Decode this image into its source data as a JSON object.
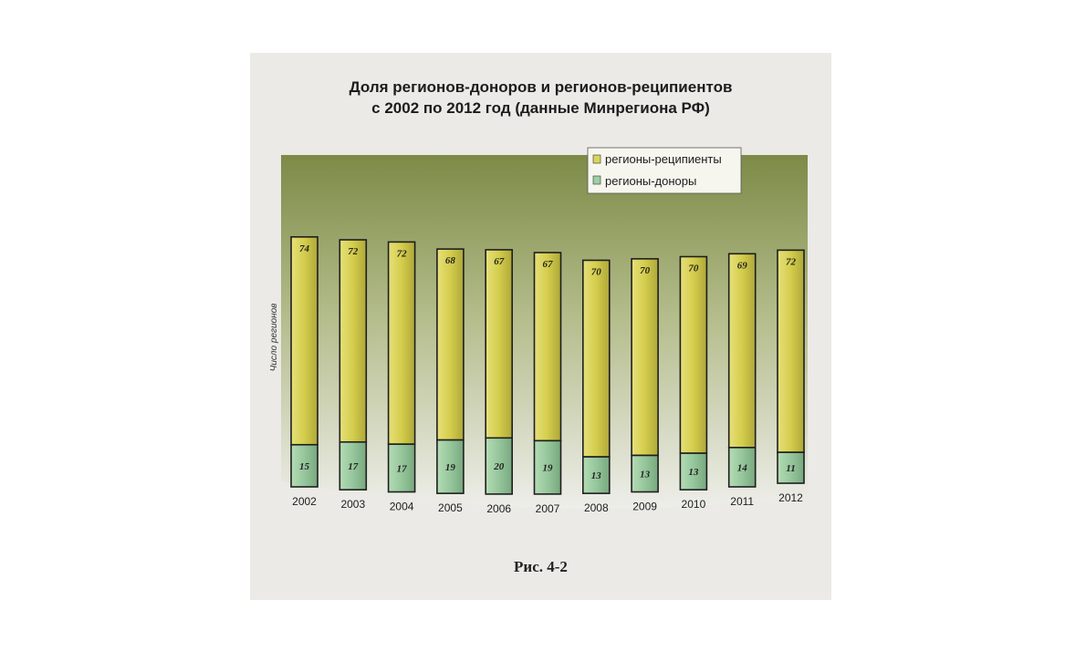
{
  "figure": {
    "title_line1": "Доля регионов-доноров и регионов-реципиентов",
    "title_line2": "с 2002 по 2012 год (данные Минрегиона РФ)",
    "caption": "Рис. 4-2"
  },
  "chart_data": {
    "type": "bar",
    "stacked": true,
    "title": "Доля регионов-доноров и регионов-реципиентов с 2002 по 2012 год (данные Минрегиона РФ)",
    "xlabel": "",
    "ylabel": "Число регионов",
    "categories": [
      "2002",
      "2003",
      "2004",
      "2005",
      "2006",
      "2007",
      "2008",
      "2009",
      "2010",
      "2011",
      "2012"
    ],
    "series": [
      {
        "name": "регионы-доноры",
        "values": [
          15,
          17,
          17,
          19,
          20,
          19,
          13,
          13,
          13,
          14,
          11
        ],
        "color": "#9dcfa4"
      },
      {
        "name": "регионы-реципиенты",
        "values": [
          74,
          72,
          72,
          68,
          67,
          67,
          70,
          70,
          70,
          69,
          72
        ],
        "color": "#d9d45a"
      }
    ],
    "legend": {
      "position": "top-right",
      "entries": [
        "регионы-реципиенты",
        "регионы-доноры"
      ]
    },
    "grid": false,
    "background_color": "#8e9a55"
  }
}
